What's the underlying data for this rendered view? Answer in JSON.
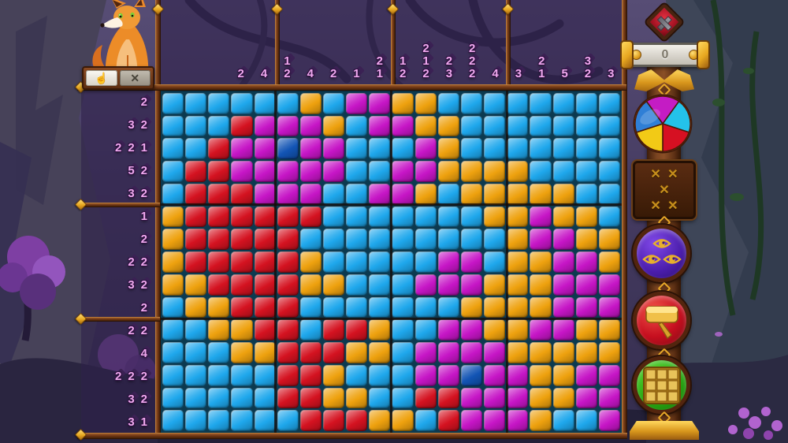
{
  "hud": {
    "toolbar": {
      "hand_glyph": "☝",
      "close_glyph": "✕"
    }
  },
  "board": {
    "rows": 15,
    "cols": 20,
    "row_clues": [
      [
        2
      ],
      [
        3,
        2
      ],
      [
        2,
        2,
        1
      ],
      [
        5,
        2
      ],
      [
        3,
        2
      ],
      [
        1
      ],
      [
        2
      ],
      [
        2,
        2
      ],
      [
        3,
        2
      ],
      [
        2
      ],
      [
        2,
        2
      ],
      [
        4
      ],
      [
        2,
        2,
        2
      ],
      [
        3,
        2
      ],
      [
        3,
        1
      ]
    ],
    "col_clues": [
      [],
      [],
      [],
      [
        2
      ],
      [
        4
      ],
      [
        1,
        2
      ],
      [
        4
      ],
      [
        2
      ],
      [
        1
      ],
      [
        2,
        1
      ],
      [
        1,
        2
      ],
      [
        2,
        1,
        2
      ],
      [
        2,
        3
      ],
      [
        2,
        2,
        2
      ],
      [
        4
      ],
      [
        3
      ],
      [
        2,
        1
      ],
      [
        5
      ],
      [
        3,
        2
      ],
      [
        3
      ]
    ],
    "grid": [
      "BBBBBBOBMMOOBBBBBBBB",
      "BBBRMMMOBMMOOBBBBBBB",
      "BBRMMDMMBBBMOBBBBBBB",
      "BRRMMMMMBBMMOOOOBBBB",
      "BRRRMMMBBMMOBOOOOOBB",
      "ORRRRRRBBBBBBBOOMOOB",
      "ORRRRRBBBBBBBBBOMMOO",
      "ORRRRROBBBBBMMBOOMMO",
      "OORRRROOBBBMMMOOOMMM",
      "BOORRRBBBBBBBOOOOMMM",
      "BBOORRBRROBBMMOOMMOO",
      "BBBOORRROOBMMMMOOOOO",
      "BBBBBRROBBBMMDMMOOMM",
      "BBBBBRROOBBRRMMMOOMM",
      "BBBBBBRRROOBRMMMOBBM"
    ],
    "palette": {
      "B": "#1ea7ec",
      "R": "#d41220",
      "M": "#c615c6",
      "O": "#eea10e",
      "D": "#1254b4"
    },
    "clue_text_color": "#f0a9ef"
  },
  "sidebar": {
    "counter_value": "0",
    "wheel_colors": [
      "#c41cc4",
      "#24c2ea",
      "#d61022",
      "#f2ca16",
      "#2f7fd6"
    ],
    "cross_glyph": "✕",
    "cross_count": 5,
    "icons": [
      "mistakes-diamond-icon",
      "coin-counter",
      "color-wheel-icon",
      "cross-marks-icon",
      "eyes-icon",
      "hammer-icon",
      "mini-grid-icon"
    ]
  }
}
